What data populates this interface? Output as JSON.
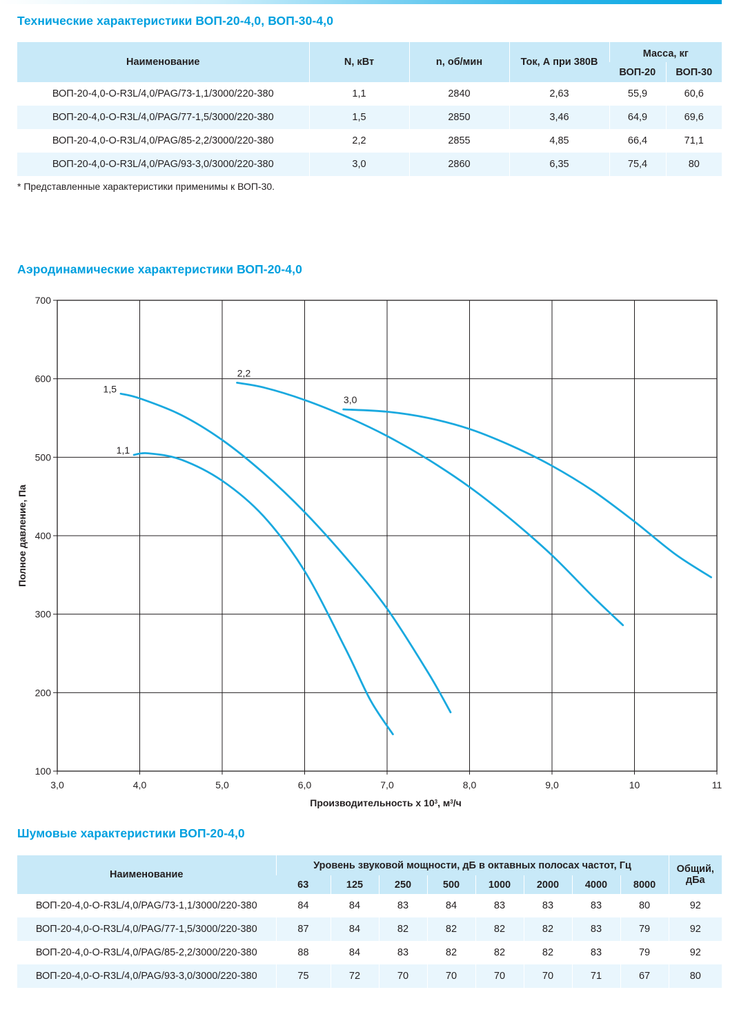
{
  "header": {
    "accent_bar": "#00a3e0"
  },
  "tech": {
    "title": "Технические характеристики ВОП-20-4,0, ВОП-30-4,0",
    "headers": {
      "name": "Наименование",
      "power": "N, кВт",
      "speed": "n, об/мин",
      "current": "Ток, А при 380В",
      "mass": "Масса, кг",
      "mass_20": "ВОП-20",
      "mass_30": "ВОП-30"
    },
    "rows": [
      {
        "name": "ВОП-20-4,0-О-R3L/4,0/PAG/73-1,1/3000/220-380",
        "power": "1,1",
        "speed": "2840",
        "current": "2,63",
        "mass_20": "55,9",
        "mass_30": "60,6"
      },
      {
        "name": "ВОП-20-4,0-О-R3L/4,0/PAG/77-1,5/3000/220-380",
        "power": "1,5",
        "speed": "2850",
        "current": "3,46",
        "mass_20": "64,9",
        "mass_30": "69,6"
      },
      {
        "name": "ВОП-20-4,0-О-R3L/4,0/PAG/85-2,2/3000/220-380",
        "power": "2,2",
        "speed": "2855",
        "current": "4,85",
        "mass_20": "66,4",
        "mass_30": "71,1"
      },
      {
        "name": "ВОП-20-4,0-О-R3L/4,0/PAG/93-3,0/3000/220-380",
        "power": "3,0",
        "speed": "2860",
        "current": "6,35",
        "mass_20": "75,4",
        "mass_30": "80"
      }
    ],
    "footnote": "* Представленные характеристики применимы к ВОП-30."
  },
  "aero": {
    "title": "Аэродинамические характеристики ВОП-20-4,0"
  },
  "chart_data": {
    "type": "line",
    "title": "",
    "xlabel_prefix": "Производительность х 10",
    "xlabel_sup": "3",
    "xlabel_mid": ", м",
    "xlabel_sup2": "3",
    "xlabel_suffix": "/ч",
    "ylabel": "Полное давление, Па",
    "xlim": [
      3,
      11
    ],
    "ylim": [
      100,
      700
    ],
    "grid": true,
    "line_color": "#1aa9df",
    "x_ticks": [
      {
        "v": 3,
        "label": "3,0"
      },
      {
        "v": 4,
        "label": "4,0"
      },
      {
        "v": 5,
        "label": "5,0"
      },
      {
        "v": 6,
        "label": "6,0"
      },
      {
        "v": 7,
        "label": "7,0"
      },
      {
        "v": 8,
        "label": "8,0"
      },
      {
        "v": 9,
        "label": "9,0"
      },
      {
        "v": 10,
        "label": "10"
      },
      {
        "v": 11,
        "label": "11"
      }
    ],
    "y_ticks": [
      {
        "v": 100,
        "label": "100"
      },
      {
        "v": 200,
        "label": "200"
      },
      {
        "v": 300,
        "label": "300"
      },
      {
        "v": 400,
        "label": "400"
      },
      {
        "v": 500,
        "label": "500"
      },
      {
        "v": 600,
        "label": "600"
      },
      {
        "v": 700,
        "label": "700"
      }
    ],
    "series": [
      {
        "name": "1,1",
        "x": [
          3.93,
          4.1,
          4.5,
          5.0,
          5.5,
          6.0,
          6.5,
          6.8,
          7.07
        ],
        "y": [
          503,
          505,
          497,
          470,
          425,
          355,
          255,
          190,
          147
        ]
      },
      {
        "name": "1,5",
        "x": [
          3.77,
          4.0,
          4.5,
          5.0,
          5.5,
          6.0,
          6.5,
          7.0,
          7.5,
          7.77
        ],
        "y": [
          581,
          575,
          554,
          522,
          480,
          430,
          372,
          307,
          225,
          175
        ]
      },
      {
        "name": "2,2",
        "x": [
          5.18,
          5.5,
          6.0,
          6.5,
          7.0,
          7.5,
          8.0,
          8.5,
          9.0,
          9.5,
          9.86
        ],
        "y": [
          595,
          589,
          573,
          552,
          527,
          497,
          462,
          421,
          375,
          322,
          286
        ]
      },
      {
        "name": "3,0",
        "x": [
          6.47,
          7.0,
          7.5,
          8.0,
          8.5,
          9.0,
          9.5,
          10.0,
          10.5,
          10.93
        ],
        "y": [
          561,
          558,
          550,
          536,
          515,
          489,
          457,
          418,
          376,
          347
        ]
      }
    ]
  },
  "noise": {
    "title": "Шумовые характеристики ВОП-20-4,0",
    "headers": {
      "name": "Наименование",
      "bands_title": "Уровень звуковой мощности, дБ в октавных полосах частот, Гц",
      "bands": [
        "63",
        "125",
        "250",
        "500",
        "1000",
        "2000",
        "4000",
        "8000"
      ],
      "total_line1": "Общий,",
      "total_line2": "дБа"
    },
    "rows": [
      {
        "name": "ВОП-20-4,0-О-R3L/4,0/PAG/73-1,1/3000/220-380",
        "values": [
          "84",
          "84",
          "83",
          "84",
          "83",
          "83",
          "83",
          "80"
        ],
        "total": "92"
      },
      {
        "name": "ВОП-20-4,0-О-R3L/4,0/PAG/77-1,5/3000/220-380",
        "values": [
          "87",
          "84",
          "82",
          "82",
          "82",
          "82",
          "83",
          "79"
        ],
        "total": "92"
      },
      {
        "name": "ВОП-20-4,0-О-R3L/4,0/PAG/85-2,2/3000/220-380",
        "values": [
          "88",
          "84",
          "83",
          "82",
          "82",
          "82",
          "83",
          "79"
        ],
        "total": "92"
      },
      {
        "name": "ВОП-20-4,0-О-R3L/4,0/PAG/93-3,0/3000/220-380",
        "values": [
          "75",
          "72",
          "70",
          "70",
          "70",
          "70",
          "71",
          "67"
        ],
        "total": "80"
      }
    ]
  }
}
